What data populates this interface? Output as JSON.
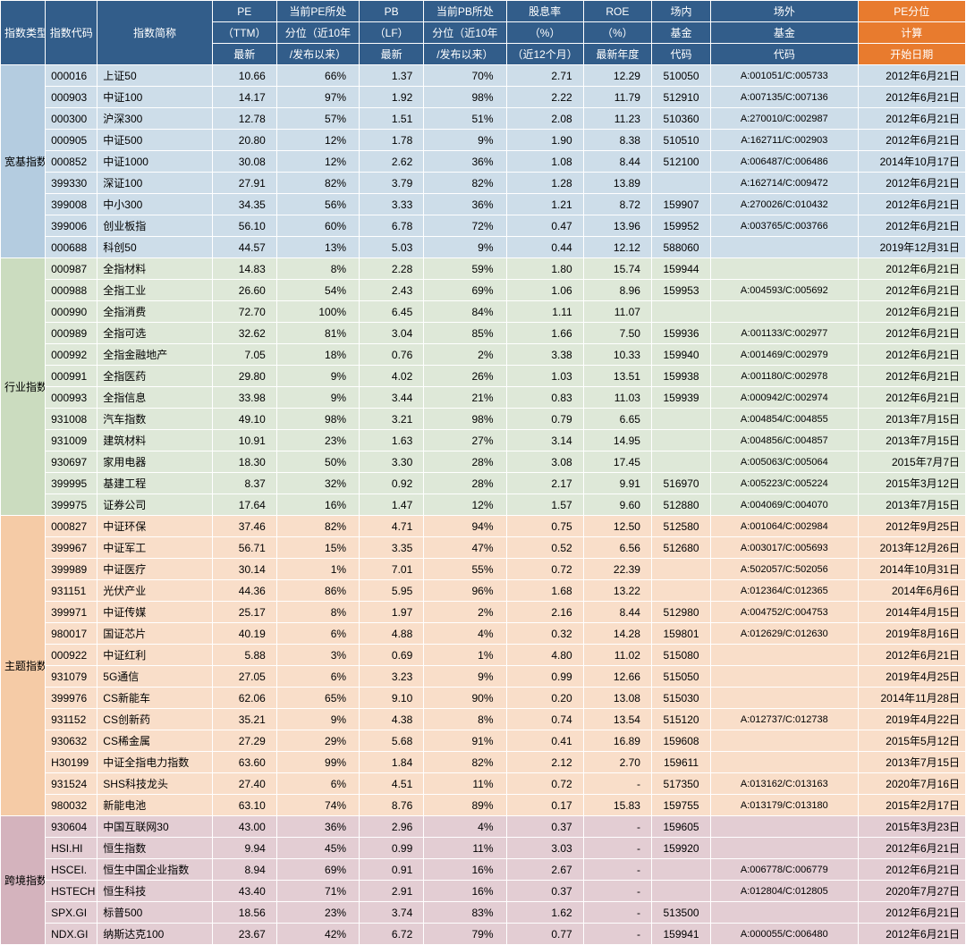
{
  "columns": {
    "c0": "指数类型",
    "c1": "指数代码",
    "c2": "指数简称",
    "c3a": "PE",
    "c3b": "（TTM）",
    "c3c": "最新",
    "c4a": "当前PE所处",
    "c4b": "分位（近10年",
    "c4c": "/发布以来）",
    "c5a": "PB",
    "c5b": "（LF）",
    "c5c": "最新",
    "c6a": "当前PB所处",
    "c6b": "分位（近10年",
    "c6c": "/发布以来）",
    "c7a": "股息率",
    "c7b": "（%）",
    "c7c": "（近12个月）",
    "c8a": "ROE",
    "c8b": "（%）",
    "c8c": "最新年度",
    "c9a": "场内",
    "c9b": "基金",
    "c9c": "代码",
    "c10a": "场外",
    "c10b": "基金",
    "c10c": "代码",
    "c11a": "PE分位",
    "c11b": "计算",
    "c11c": "开始日期"
  },
  "groups": [
    {
      "label": "宽基指数",
      "cls": "g0",
      "catCls": "cat0",
      "rows": [
        [
          "000016",
          "上证50",
          "10.66",
          "66%",
          "1.37",
          "70%",
          "2.71",
          "12.29",
          "510050",
          "A:001051/C:005733",
          "2012年6月21日"
        ],
        [
          "000903",
          "中证100",
          "14.17",
          "97%",
          "1.92",
          "98%",
          "2.22",
          "11.79",
          "512910",
          "A:007135/C:007136",
          "2012年6月21日"
        ],
        [
          "000300",
          "沪深300",
          "12.78",
          "57%",
          "1.51",
          "51%",
          "2.08",
          "11.23",
          "510360",
          "A:270010/C:002987",
          "2012年6月21日"
        ],
        [
          "000905",
          "中证500",
          "20.80",
          "12%",
          "1.78",
          "9%",
          "1.90",
          "8.38",
          "510510",
          "A:162711/C:002903",
          "2012年6月21日"
        ],
        [
          "000852",
          "中证1000",
          "30.08",
          "12%",
          "2.62",
          "36%",
          "1.08",
          "8.44",
          "512100",
          "A:006487/C:006486",
          "2014年10月17日"
        ],
        [
          "399330",
          "深证100",
          "27.91",
          "82%",
          "3.79",
          "82%",
          "1.28",
          "13.89",
          "",
          "A:162714/C:009472",
          "2012年6月21日"
        ],
        [
          "399008",
          "中小300",
          "34.35",
          "56%",
          "3.33",
          "36%",
          "1.21",
          "8.72",
          "159907",
          "A:270026/C:010432",
          "2012年6月21日"
        ],
        [
          "399006",
          "创业板指",
          "56.10",
          "60%",
          "6.78",
          "72%",
          "0.47",
          "13.96",
          "159952",
          "A:003765/C:003766",
          "2012年6月21日"
        ],
        [
          "000688",
          "科创50",
          "44.57",
          "13%",
          "5.03",
          "9%",
          "0.44",
          "12.12",
          "588060",
          "",
          "2019年12月31日"
        ]
      ]
    },
    {
      "label": "行业指数",
      "cls": "g1",
      "catCls": "cat1",
      "rows": [
        [
          "000987",
          "全指材料",
          "14.83",
          "8%",
          "2.28",
          "59%",
          "1.80",
          "15.74",
          "159944",
          "",
          "2012年6月21日"
        ],
        [
          "000988",
          "全指工业",
          "26.60",
          "54%",
          "2.43",
          "69%",
          "1.06",
          "8.96",
          "159953",
          "A:004593/C:005692",
          "2012年6月21日"
        ],
        [
          "000990",
          "全指消费",
          "72.70",
          "100%",
          "6.45",
          "84%",
          "1.11",
          "11.07",
          "",
          "",
          "2012年6月21日"
        ],
        [
          "000989",
          "全指可选",
          "32.62",
          "81%",
          "3.04",
          "85%",
          "1.66",
          "7.50",
          "159936",
          "A:001133/C:002977",
          "2012年6月21日"
        ],
        [
          "000992",
          "全指金融地产",
          "7.05",
          "18%",
          "0.76",
          "2%",
          "3.38",
          "10.33",
          "159940",
          "A:001469/C:002979",
          "2012年6月21日"
        ],
        [
          "000991",
          "全指医药",
          "29.80",
          "9%",
          "4.02",
          "26%",
          "1.03",
          "13.51",
          "159938",
          "A:001180/C:002978",
          "2012年6月21日"
        ],
        [
          "000993",
          "全指信息",
          "33.98",
          "9%",
          "3.44",
          "21%",
          "0.83",
          "11.03",
          "159939",
          "A:000942/C:002974",
          "2012年6月21日"
        ],
        [
          "931008",
          "汽车指数",
          "49.10",
          "98%",
          "3.21",
          "98%",
          "0.79",
          "6.65",
          "",
          "A:004854/C:004855",
          "2013年7月15日"
        ],
        [
          "931009",
          "建筑材料",
          "10.91",
          "23%",
          "1.63",
          "27%",
          "3.14",
          "14.95",
          "",
          "A:004856/C:004857",
          "2013年7月15日"
        ],
        [
          "930697",
          "家用电器",
          "18.30",
          "50%",
          "3.30",
          "28%",
          "3.08",
          "17.45",
          "",
          "A:005063/C:005064",
          "2015年7月7日"
        ],
        [
          "399995",
          "基建工程",
          "8.37",
          "32%",
          "0.92",
          "28%",
          "2.17",
          "9.91",
          "516970",
          "A:005223/C:005224",
          "2015年3月12日"
        ],
        [
          "399975",
          "证券公司",
          "17.64",
          "16%",
          "1.47",
          "12%",
          "1.57",
          "9.60",
          "512880",
          "A:004069/C:004070",
          "2013年7月15日"
        ]
      ]
    },
    {
      "label": "主题指数",
      "cls": "g2",
      "catCls": "cat2",
      "rows": [
        [
          "000827",
          "中证环保",
          "37.46",
          "82%",
          "4.71",
          "94%",
          "0.75",
          "12.50",
          "512580",
          "A:001064/C:002984",
          "2012年9月25日"
        ],
        [
          "399967",
          "中证军工",
          "56.71",
          "15%",
          "3.35",
          "47%",
          "0.52",
          "6.56",
          "512680",
          "A:003017/C:005693",
          "2013年12月26日"
        ],
        [
          "399989",
          "中证医疗",
          "30.14",
          "1%",
          "7.01",
          "55%",
          "0.72",
          "22.39",
          "",
          "A:502057/C:502056",
          "2014年10月31日"
        ],
        [
          "931151",
          "光伏产业",
          "44.36",
          "86%",
          "5.95",
          "96%",
          "1.68",
          "13.22",
          "",
          "A:012364/C:012365",
          "2014年6月6日"
        ],
        [
          "399971",
          "中证传媒",
          "25.17",
          "8%",
          "1.97",
          "2%",
          "2.16",
          "8.44",
          "512980",
          "A:004752/C:004753",
          "2014年4月15日"
        ],
        [
          "980017",
          "国证芯片",
          "40.19",
          "6%",
          "4.88",
          "4%",
          "0.32",
          "14.28",
          "159801",
          "A:012629/C:012630",
          "2019年8月16日"
        ],
        [
          "000922",
          "中证红利",
          "5.88",
          "3%",
          "0.69",
          "1%",
          "4.80",
          "11.02",
          "515080",
          "",
          "2012年6月21日"
        ],
        [
          "931079",
          "5G通信",
          "27.05",
          "6%",
          "3.23",
          "9%",
          "0.99",
          "12.66",
          "515050",
          "",
          "2019年4月25日"
        ],
        [
          "399976",
          "CS新能车",
          "62.06",
          "65%",
          "9.10",
          "90%",
          "0.20",
          "13.08",
          "515030",
          "",
          "2014年11月28日"
        ],
        [
          "931152",
          "CS创新药",
          "35.21",
          "9%",
          "4.38",
          "8%",
          "0.74",
          "13.54",
          "515120",
          "A:012737/C:012738",
          "2019年4月22日"
        ],
        [
          "930632",
          "CS稀金属",
          "27.29",
          "29%",
          "5.68",
          "91%",
          "0.41",
          "16.89",
          "159608",
          "",
          "2015年5月12日"
        ],
        [
          "H30199",
          "中证全指电力指数",
          "63.60",
          "99%",
          "1.84",
          "82%",
          "2.12",
          "2.70",
          "159611",
          "",
          "2013年7月15日"
        ],
        [
          "931524",
          "SHS科技龙头",
          "27.40",
          "6%",
          "4.51",
          "11%",
          "0.72",
          "-",
          "517350",
          "A:013162/C:013163",
          "2020年7月16日"
        ],
        [
          "980032",
          "新能电池",
          "63.10",
          "74%",
          "8.76",
          "89%",
          "0.17",
          "15.83",
          "159755",
          "A:013179/C:013180",
          "2015年2月17日"
        ]
      ]
    },
    {
      "label": "跨境指数",
      "cls": "g3",
      "catCls": "cat3",
      "rows": [
        [
          "930604",
          "中国互联网30",
          "43.00",
          "36%",
          "2.96",
          "4%",
          "0.37",
          "-",
          "159605",
          "",
          "2015年3月23日"
        ],
        [
          "HSI.HI",
          "恒生指数",
          "9.94",
          "45%",
          "0.99",
          "11%",
          "3.03",
          "-",
          "159920",
          "",
          "2012年6月21日"
        ],
        [
          "HSCEI.",
          "恒生中国企业指数",
          "8.94",
          "69%",
          "0.91",
          "16%",
          "2.67",
          "-",
          "",
          "A:006778/C:006779",
          "2012年6月21日"
        ],
        [
          "HSTECH",
          "恒生科技",
          "43.40",
          "71%",
          "2.91",
          "16%",
          "0.37",
          "-",
          "",
          "A:012804/C:012805",
          "2020年7月27日"
        ],
        [
          "SPX.GI",
          "标普500",
          "18.56",
          "23%",
          "3.74",
          "83%",
          "1.62",
          "-",
          "513500",
          "",
          "2012年6月21日"
        ],
        [
          "NDX.GI",
          "纳斯达克100",
          "23.67",
          "42%",
          "6.72",
          "79%",
          "0.77",
          "-",
          "159941",
          "A:000055/C:006480",
          "2012年6月21日"
        ]
      ]
    }
  ]
}
